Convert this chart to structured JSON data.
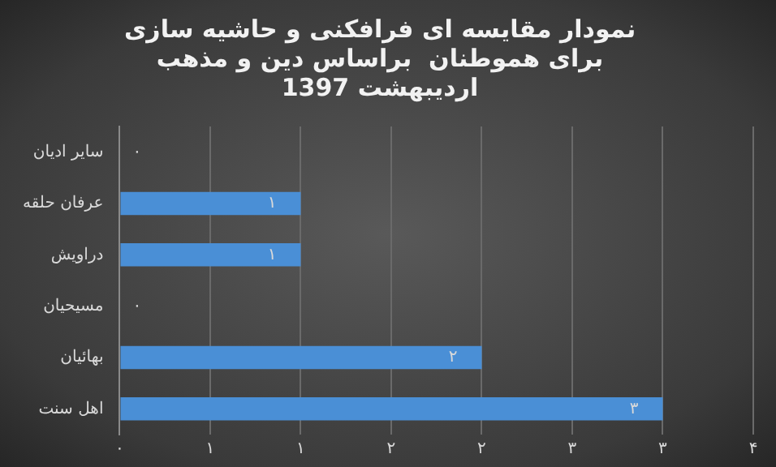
{
  "chart_data": {
    "type": "bar",
    "orientation": "horizontal",
    "title": "نمودار مقایسه ای فرافکنی و حاشیه سازی\nبرای هموطنان  براساس دین و مذهب\nاردیبهشت 1397",
    "categories": [
      "سایر ادیان",
      "عرفان حلقه",
      "دراویش",
      "مسیحیان",
      "بهائیان",
      "اهل سنت"
    ],
    "values": [
      0,
      1,
      1,
      0,
      2,
      3
    ],
    "value_labels": [
      "۰",
      "۱",
      "۱",
      "۰",
      "۲",
      "۳"
    ],
    "color": "#4a8fd6",
    "xlim": [
      0,
      3.5
    ],
    "xticks": [
      {
        "value": 0,
        "label": "۰"
      },
      {
        "value": 0.5,
        "label": "۱"
      },
      {
        "value": 1,
        "label": "۱"
      },
      {
        "value": 1.5,
        "label": "۲"
      },
      {
        "value": 2,
        "label": "۲"
      },
      {
        "value": 2.5,
        "label": "۳"
      },
      {
        "value": 3,
        "label": "۳"
      },
      {
        "value": 3.5,
        "label": "۴"
      }
    ],
    "grid": "x",
    "legend": false
  }
}
